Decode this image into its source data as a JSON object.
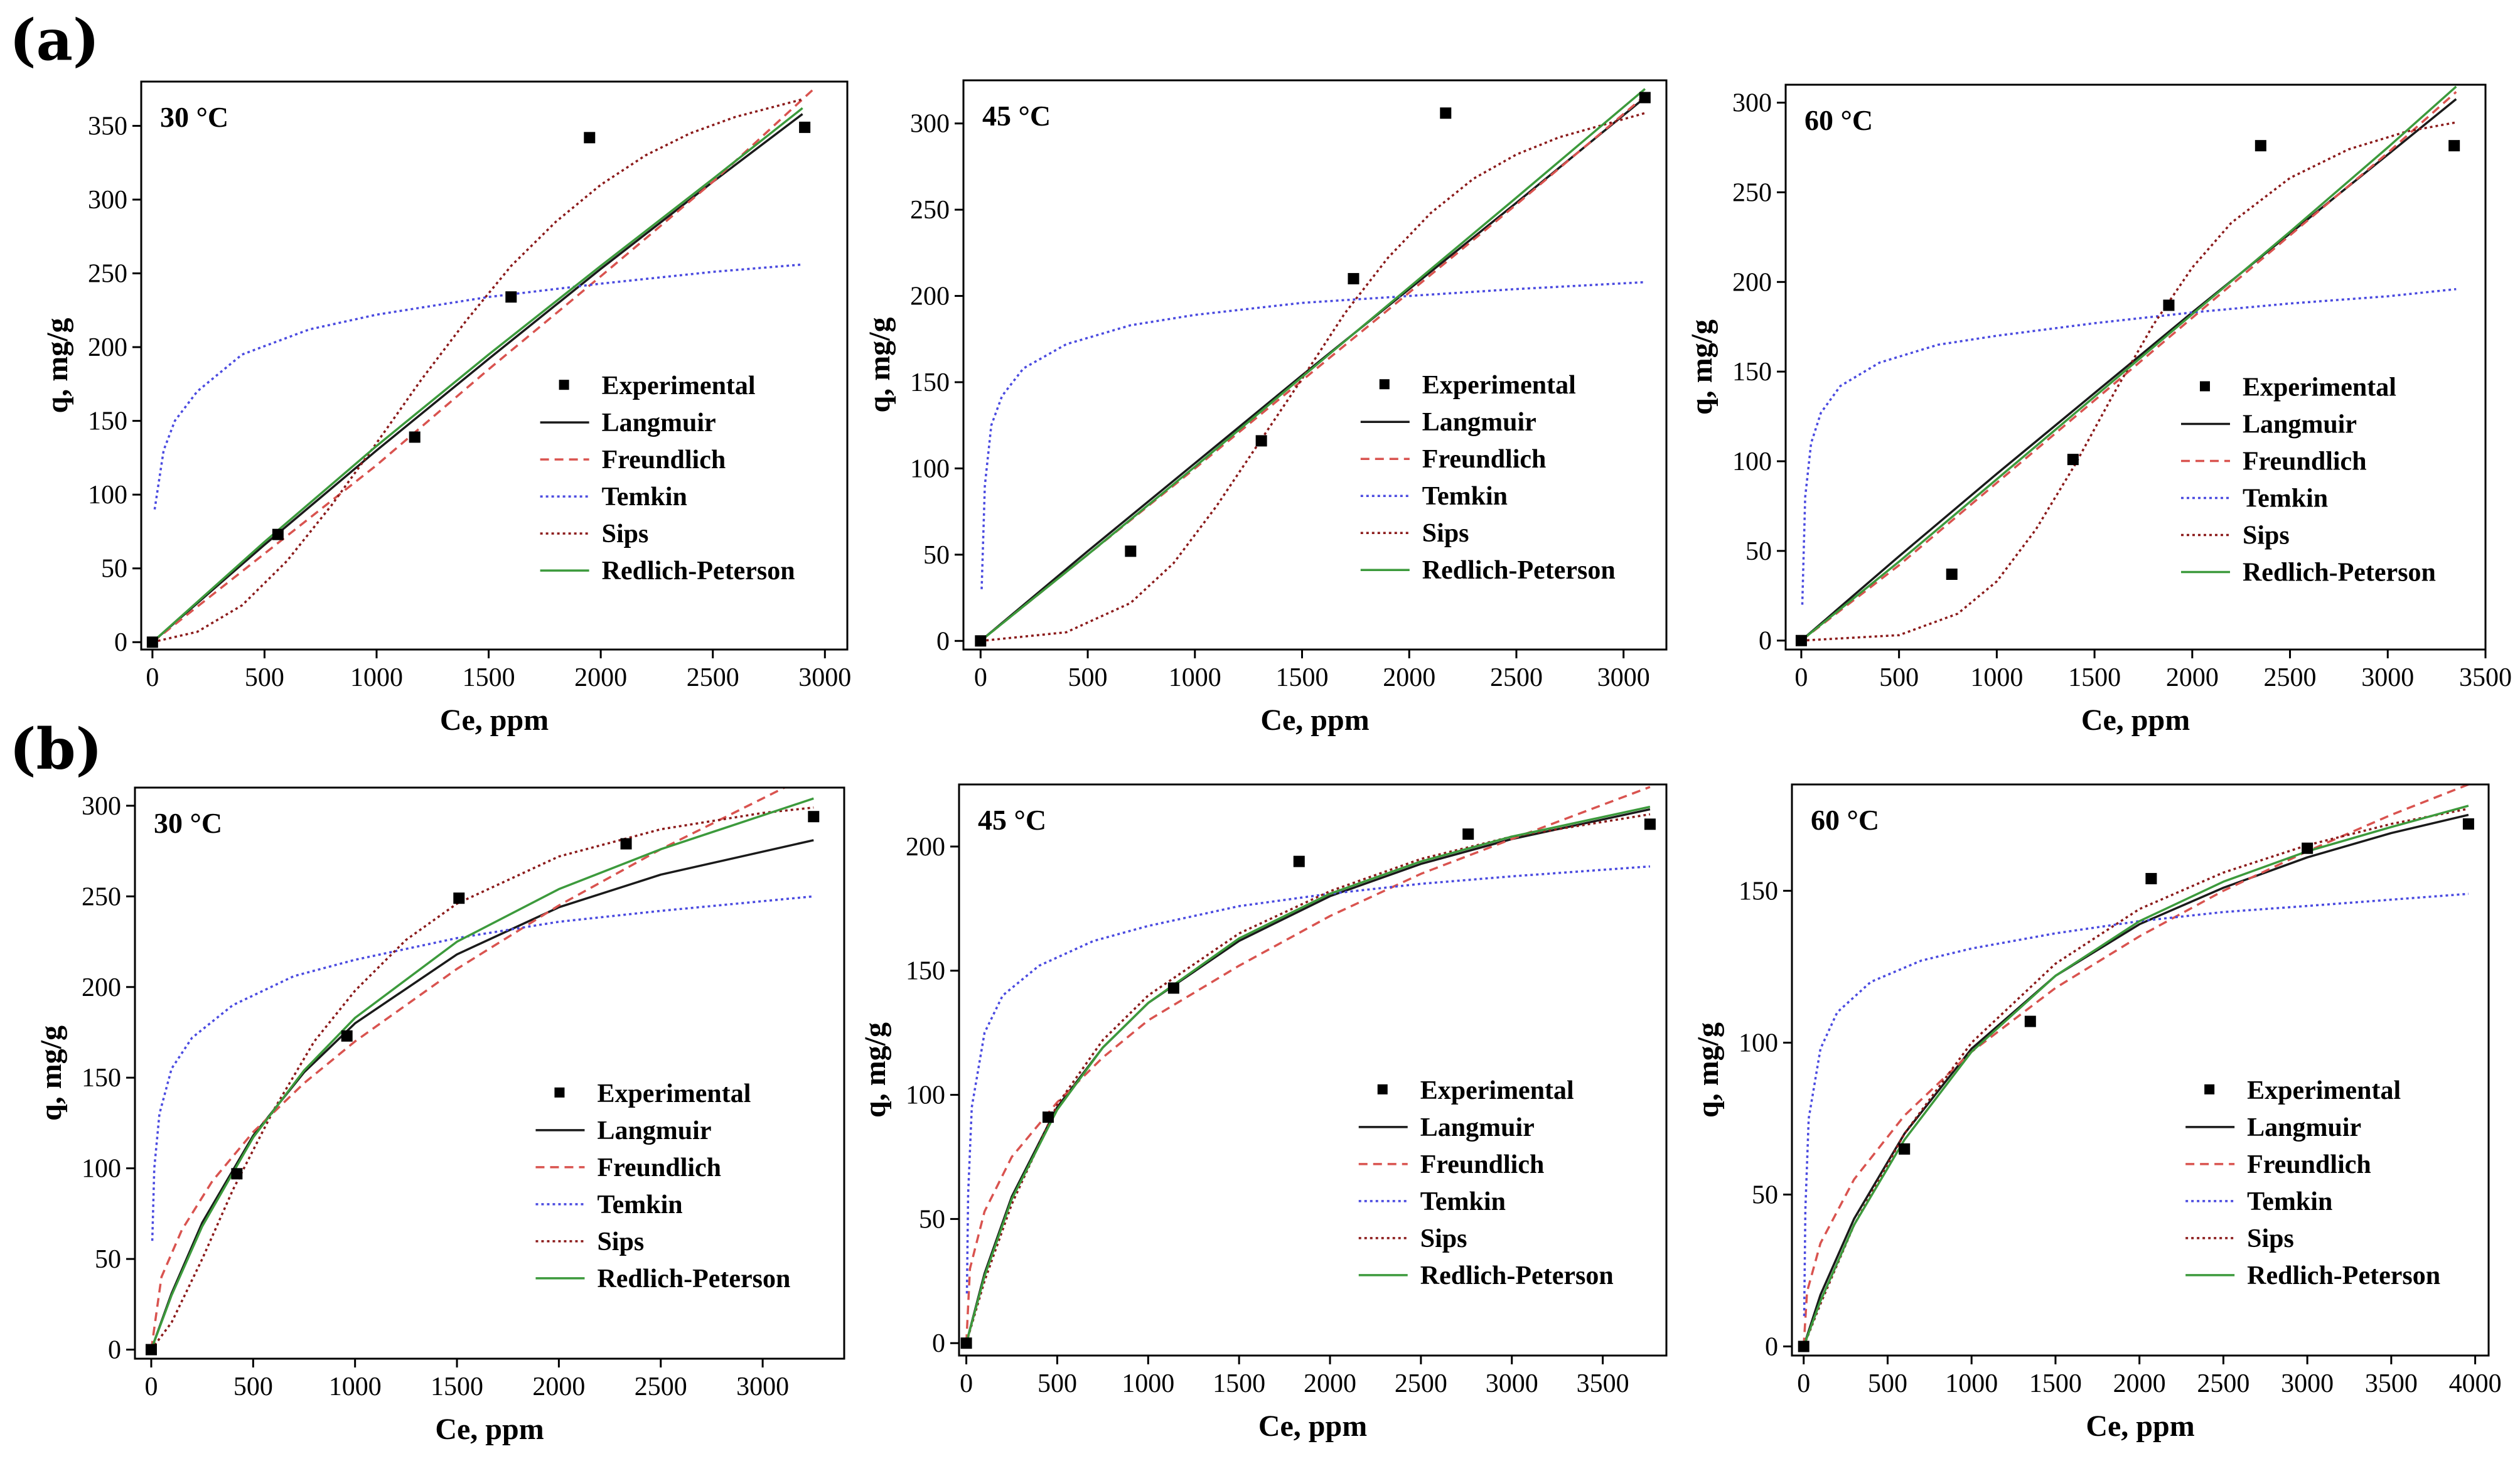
{
  "figure": {
    "rows": [
      {
        "label": "(a)"
      },
      {
        "label": "(b)"
      }
    ]
  },
  "styles": {
    "Experimental": {
      "color": "#000000",
      "kind": "marker"
    },
    "Langmuir": {
      "color": "#1a1a1a",
      "dash": ""
    },
    "Freundlich": {
      "color": "#d9534f",
      "dash": "14 9"
    },
    "Temkin": {
      "color": "#4a4ae0",
      "dash": "4 5"
    },
    "Sips": {
      "color": "#8b1a1a",
      "dash": "4 5"
    },
    "Redlich-Peterson": {
      "color": "#3c9a3c",
      "dash": ""
    }
  },
  "chart_data": [
    {
      "type": "line",
      "row": "(a)",
      "annotation": "30 °C",
      "xlabel": "Ce, ppm",
      "ylabel": "q, mg/g",
      "xlim": [
        -50,
        3100
      ],
      "ylim": [
        -5,
        380
      ],
      "xticks": [
        0,
        500,
        1000,
        1500,
        2000,
        2500,
        3000
      ],
      "yticks": [
        0,
        50,
        100,
        150,
        200,
        250,
        300,
        350
      ],
      "legend_position": "lower-right",
      "experimental": {
        "name": "Experimental",
        "x": [
          0,
          560,
          1170,
          1600,
          1950,
          2910
        ],
        "y": [
          0,
          73,
          139,
          234,
          342,
          349
        ]
      },
      "series": [
        {
          "name": "Langmuir",
          "x": [
            0,
            500,
            1000,
            1500,
            2000,
            2500,
            2900
          ],
          "y": [
            0,
            66,
            130,
            192,
            253,
            312,
            358
          ]
        },
        {
          "name": "Freundlich",
          "x": [
            0,
            100,
            500,
            1000,
            1500,
            2000,
            2500,
            2950
          ],
          "y": [
            0,
            12,
            60,
            120,
            185,
            248,
            312,
            375
          ]
        },
        {
          "name": "Temkin",
          "x": [
            10,
            50,
            100,
            200,
            400,
            700,
            1000,
            1500,
            2000,
            2500,
            2900
          ],
          "y": [
            90,
            130,
            150,
            170,
            195,
            212,
            222,
            234,
            243,
            251,
            256
          ]
        },
        {
          "name": "Sips",
          "x": [
            0,
            200,
            400,
            600,
            800,
            1000,
            1200,
            1400,
            1600,
            1800,
            2000,
            2200,
            2400,
            2600,
            2900
          ],
          "y": [
            0,
            7,
            25,
            55,
            93,
            135,
            178,
            218,
            255,
            285,
            310,
            330,
            345,
            356,
            368
          ]
        },
        {
          "name": "Redlich-Peterson",
          "x": [
            0,
            500,
            1000,
            1500,
            2000,
            2500,
            2900
          ],
          "y": [
            0,
            68,
            133,
            195,
            255,
            314,
            362
          ]
        }
      ]
    },
    {
      "type": "line",
      "row": "(a)",
      "annotation": "45 °C",
      "xlabel": "Ce, ppm",
      "ylabel": "q, mg/g",
      "xlim": [
        -80,
        3200
      ],
      "ylim": [
        -5,
        325
      ],
      "xticks": [
        0,
        500,
        1000,
        1500,
        2000,
        2500,
        3000
      ],
      "yticks": [
        0,
        50,
        100,
        150,
        200,
        250,
        300
      ],
      "legend_position": "lower-right",
      "experimental": {
        "name": "Experimental",
        "x": [
          0,
          700,
          1310,
          1740,
          2170,
          3100
        ],
        "y": [
          0,
          52,
          116,
          210,
          306,
          315
        ]
      },
      "series": [
        {
          "name": "Langmuir",
          "x": [
            0,
            500,
            1000,
            1500,
            2000,
            2500,
            3100
          ],
          "y": [
            0,
            52,
            103,
            154,
            204,
            254,
            315
          ]
        },
        {
          "name": "Freundlich",
          "x": [
            0,
            500,
            1000,
            1500,
            2000,
            2500,
            3100
          ],
          "y": [
            0,
            50,
            100,
            151,
            202,
            253,
            316
          ]
        },
        {
          "name": "Temkin",
          "x": [
            5,
            20,
            50,
            100,
            200,
            400,
            700,
            1000,
            1500,
            2000,
            2500,
            3100
          ],
          "y": [
            30,
            90,
            125,
            142,
            158,
            172,
            183,
            189,
            196,
            200,
            204,
            208
          ]
        },
        {
          "name": "Sips",
          "x": [
            0,
            400,
            700,
            900,
            1100,
            1300,
            1500,
            1700,
            1900,
            2100,
            2300,
            2500,
            2700,
            3100
          ],
          "y": [
            0,
            5,
            22,
            45,
            78,
            115,
            152,
            190,
            222,
            248,
            268,
            282,
            292,
            306
          ]
        },
        {
          "name": "Redlich-Peterson",
          "x": [
            0,
            500,
            1000,
            1500,
            2000,
            2500,
            3100
          ],
          "y": [
            0,
            50,
            101,
            153,
            205,
            257,
            320
          ]
        }
      ]
    },
    {
      "type": "line",
      "row": "(a)",
      "annotation": "60 °C",
      "xlabel": "Ce, ppm",
      "ylabel": "q, mg/g",
      "xlim": [
        -80,
        3500
      ],
      "ylim": [
        -5,
        310
      ],
      "xticks": [
        0,
        500,
        1000,
        1500,
        2000,
        2500,
        3000,
        3500
      ],
      "yticks": [
        0,
        50,
        100,
        150,
        200,
        250,
        300
      ],
      "legend_position": "lower-right",
      "experimental": {
        "name": "Experimental",
        "x": [
          0,
          770,
          1390,
          1880,
          2350,
          3340
        ],
        "y": [
          0,
          37,
          101,
          187,
          276,
          276
        ]
      },
      "series": [
        {
          "name": "Langmuir",
          "x": [
            0,
            500,
            1000,
            1500,
            2000,
            2500,
            3000,
            3350
          ],
          "y": [
            0,
            47,
            93,
            138,
            183,
            227,
            271,
            302
          ]
        },
        {
          "name": "Freundlich",
          "x": [
            0,
            500,
            1000,
            1500,
            2000,
            2500,
            3000,
            3350
          ],
          "y": [
            0,
            42,
            88,
            134,
            180,
            226,
            272,
            306
          ]
        },
        {
          "name": "Temkin",
          "x": [
            5,
            20,
            50,
            100,
            200,
            400,
            700,
            1000,
            1500,
            2000,
            2500,
            3000,
            3350
          ],
          "y": [
            20,
            80,
            110,
            127,
            142,
            155,
            165,
            170,
            177,
            183,
            188,
            192,
            196
          ]
        },
        {
          "name": "Sips",
          "x": [
            0,
            500,
            800,
            1000,
            1200,
            1400,
            1600,
            1800,
            2000,
            2200,
            2500,
            2800,
            3100,
            3350
          ],
          "y": [
            0,
            3,
            15,
            33,
            62,
            98,
            138,
            176,
            208,
            233,
            258,
            274,
            284,
            289
          ]
        },
        {
          "name": "Redlich-Peterson",
          "x": [
            0,
            500,
            1000,
            1500,
            2000,
            2500,
            3000,
            3350
          ],
          "y": [
            0,
            44,
            90,
            136,
            182,
            228,
            275,
            309
          ]
        }
      ]
    },
    {
      "type": "line",
      "row": "(b)",
      "annotation": "30 °C",
      "xlabel": "Ce, ppm",
      "ylabel": "q, mg/g",
      "xlim": [
        -80,
        3400
      ],
      "ylim": [
        -5,
        310
      ],
      "xticks": [
        0,
        500,
        1000,
        1500,
        2000,
        2500,
        3000
      ],
      "yticks": [
        0,
        50,
        100,
        150,
        200,
        250,
        300
      ],
      "legend_position": "lower-right",
      "experimental": {
        "name": "Experimental",
        "x": [
          0,
          420,
          960,
          1510,
          2330,
          3250
        ],
        "y": [
          0,
          97,
          173,
          249,
          279,
          294
        ]
      },
      "series": [
        {
          "name": "Langmuir",
          "x": [
            0,
            100,
            250,
            500,
            750,
            1000,
            1500,
            2000,
            2500,
            3250
          ],
          "y": [
            0,
            31,
            70,
            118,
            153,
            180,
            218,
            244,
            262,
            281
          ]
        },
        {
          "name": "Freundlich",
          "x": [
            0,
            50,
            150,
            300,
            500,
            750,
            1000,
            1500,
            2000,
            2500,
            3250
          ],
          "y": [
            0,
            40,
            66,
            93,
            120,
            147,
            170,
            210,
            245,
            276,
            318
          ]
        },
        {
          "name": "Temkin",
          "x": [
            5,
            15,
            40,
            100,
            200,
            400,
            700,
            1000,
            1500,
            2000,
            2500,
            3250
          ],
          "y": [
            60,
            100,
            130,
            155,
            172,
            190,
            206,
            215,
            227,
            236,
            242,
            250
          ]
        },
        {
          "name": "Sips",
          "x": [
            0,
            100,
            250,
            400,
            600,
            800,
            1000,
            1250,
            1500,
            2000,
            2500,
            3000,
            3250
          ],
          "y": [
            0,
            15,
            50,
            88,
            132,
            170,
            198,
            226,
            246,
            272,
            287,
            296,
            299
          ]
        },
        {
          "name": "Redlich-Peterson",
          "x": [
            0,
            100,
            250,
            500,
            750,
            1000,
            1500,
            2000,
            2500,
            3250
          ],
          "y": [
            0,
            30,
            68,
            117,
            154,
            183,
            225,
            254,
            276,
            304
          ]
        }
      ]
    },
    {
      "type": "line",
      "row": "(b)",
      "annotation": "45 °C",
      "xlabel": "Ce, ppm",
      "ylabel": "q, mg/g",
      "xlim": [
        -40,
        3850
      ],
      "ylim": [
        -5,
        225
      ],
      "xticks": [
        0,
        500,
        1000,
        1500,
        2000,
        2500,
        3000,
        3500
      ],
      "yticks": [
        0,
        50,
        100,
        150,
        200
      ],
      "legend_position": "lower-right",
      "experimental": {
        "name": "Experimental",
        "x": [
          0,
          450,
          1140,
          1830,
          2760,
          3760
        ],
        "y": [
          0,
          91,
          143,
          194,
          205,
          209
        ]
      },
      "series": [
        {
          "name": "Langmuir",
          "x": [
            0,
            100,
            250,
            500,
            750,
            1000,
            1500,
            2000,
            2500,
            3000,
            3760
          ],
          "y": [
            0,
            28,
            59,
            95,
            119,
            137,
            162,
            180,
            193,
            203,
            215
          ]
        },
        {
          "name": "Freundlich",
          "x": [
            0,
            20,
            100,
            250,
            500,
            750,
            1000,
            1500,
            2000,
            2500,
            3000,
            3760
          ],
          "y": [
            0,
            30,
            53,
            75,
            97,
            115,
            130,
            152,
            172,
            189,
            203,
            224
          ]
        },
        {
          "name": "Temkin",
          "x": [
            3,
            10,
            30,
            100,
            200,
            400,
            700,
            1000,
            1500,
            2000,
            2500,
            3000,
            3760
          ],
          "y": [
            20,
            60,
            95,
            125,
            140,
            152,
            162,
            168,
            176,
            181,
            185,
            188,
            192
          ]
        },
        {
          "name": "Sips",
          "x": [
            0,
            100,
            250,
            500,
            750,
            1000,
            1500,
            2000,
            2500,
            3000,
            3760
          ],
          "y": [
            0,
            25,
            56,
            96,
            122,
            140,
            165,
            182,
            195,
            204,
            213
          ]
        },
        {
          "name": "Redlich-Peterson",
          "x": [
            0,
            100,
            250,
            500,
            750,
            1000,
            1500,
            2000,
            2500,
            3000,
            3760
          ],
          "y": [
            0,
            27,
            58,
            94,
            119,
            137,
            163,
            181,
            194,
            204,
            216
          ]
        }
      ]
    },
    {
      "type": "line",
      "row": "(b)",
      "annotation": "60 °C",
      "xlabel": "Ce, ppm",
      "ylabel": "q, mg/g",
      "xlim": [
        -70,
        4080
      ],
      "ylim": [
        -3,
        185
      ],
      "xticks": [
        0,
        500,
        1000,
        1500,
        2000,
        2500,
        3000,
        3500,
        4000
      ],
      "yticks": [
        0,
        50,
        100,
        150
      ],
      "legend_position": "lower-right",
      "experimental": {
        "name": "Experimental",
        "x": [
          0,
          600,
          1350,
          2070,
          3000,
          3960
        ],
        "y": [
          0,
          65,
          107,
          154,
          164,
          172
        ]
      },
      "series": [
        {
          "name": "Langmuir",
          "x": [
            0,
            100,
            300,
            600,
            1000,
            1500,
            2000,
            2500,
            3000,
            3500,
            3960
          ],
          "y": [
            0,
            17,
            42,
            70,
            98,
            122,
            139,
            151,
            161,
            169,
            175
          ]
        },
        {
          "name": "Freundlich",
          "x": [
            0,
            20,
            100,
            300,
            600,
            1000,
            1500,
            2000,
            2500,
            3000,
            3500,
            3960
          ],
          "y": [
            0,
            18,
            34,
            55,
            76,
            97,
            118,
            135,
            150,
            163,
            175,
            185
          ]
        },
        {
          "name": "Temkin",
          "x": [
            3,
            10,
            30,
            100,
            200,
            400,
            700,
            1000,
            1500,
            2000,
            2500,
            3000,
            3960
          ],
          "y": [
            10,
            45,
            75,
            98,
            110,
            120,
            127,
            131,
            136,
            140,
            143,
            145,
            149
          ]
        },
        {
          "name": "Sips",
          "x": [
            0,
            100,
            300,
            600,
            1000,
            1500,
            2000,
            2500,
            3000,
            3500,
            3960
          ],
          "y": [
            0,
            14,
            40,
            70,
            100,
            126,
            144,
            156,
            165,
            172,
            177
          ]
        },
        {
          "name": "Redlich-Peterson",
          "x": [
            0,
            100,
            300,
            600,
            1000,
            1500,
            2000,
            2500,
            3000,
            3500,
            3960
          ],
          "y": [
            0,
            15,
            40,
            68,
            97,
            122,
            140,
            153,
            163,
            171,
            178
          ]
        }
      ]
    }
  ]
}
